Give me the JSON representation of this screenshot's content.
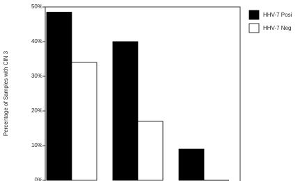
{
  "chart_data": {
    "type": "bar",
    "y_label": "Percentage of Samples with CIN 3",
    "categories": [
      null,
      null,
      null
    ],
    "series": [
      {
        "name": "HHV-7 Posi",
        "color": "#000000",
        "values": [
          48.5,
          40,
          9
        ]
      },
      {
        "name": "HHV-7 Neg",
        "color": "#ffffff",
        "values": [
          34,
          17,
          0
        ]
      }
    ],
    "ylim": [
      0,
      50
    ],
    "yticks": [
      {
        "value": 0,
        "label": "0%"
      },
      {
        "value": 10,
        "label": "10%"
      },
      {
        "value": 20,
        "label": "20%"
      },
      {
        "value": 30,
        "label": "30%"
      },
      {
        "value": 40,
        "label": "40%"
      },
      {
        "value": 50,
        "label": "50%"
      }
    ]
  }
}
